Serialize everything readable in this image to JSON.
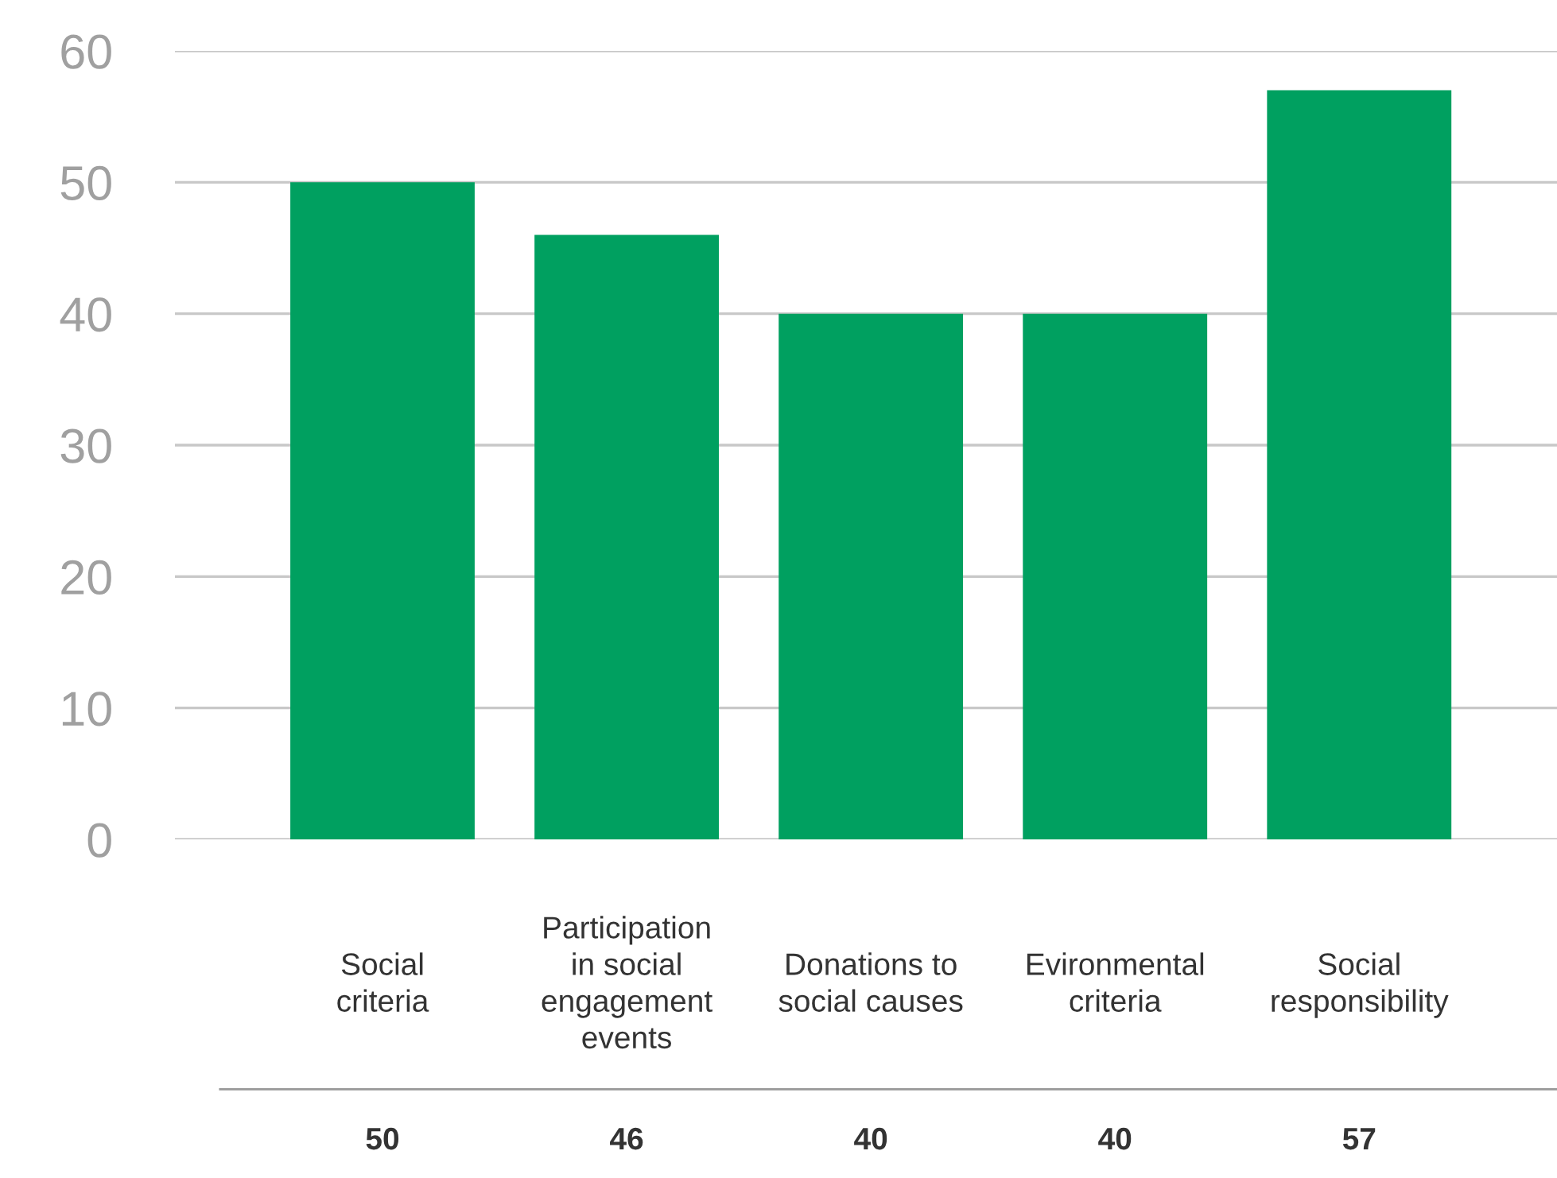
{
  "chart_data": {
    "type": "bar",
    "categories": [
      "Social\ncriteria",
      "Participation\nin social\nengagement\nevents",
      "Donations to\nsocial causes",
      "Evironmental\ncriteria",
      "Social\nresponsibility"
    ],
    "values": [
      50,
      46,
      40,
      40,
      57
    ],
    "color": "#00a060",
    "ylim": [
      0,
      60
    ],
    "yticks": [
      0,
      10,
      20,
      30,
      40,
      50,
      60
    ],
    "grid": "y",
    "data_labels": true
  }
}
